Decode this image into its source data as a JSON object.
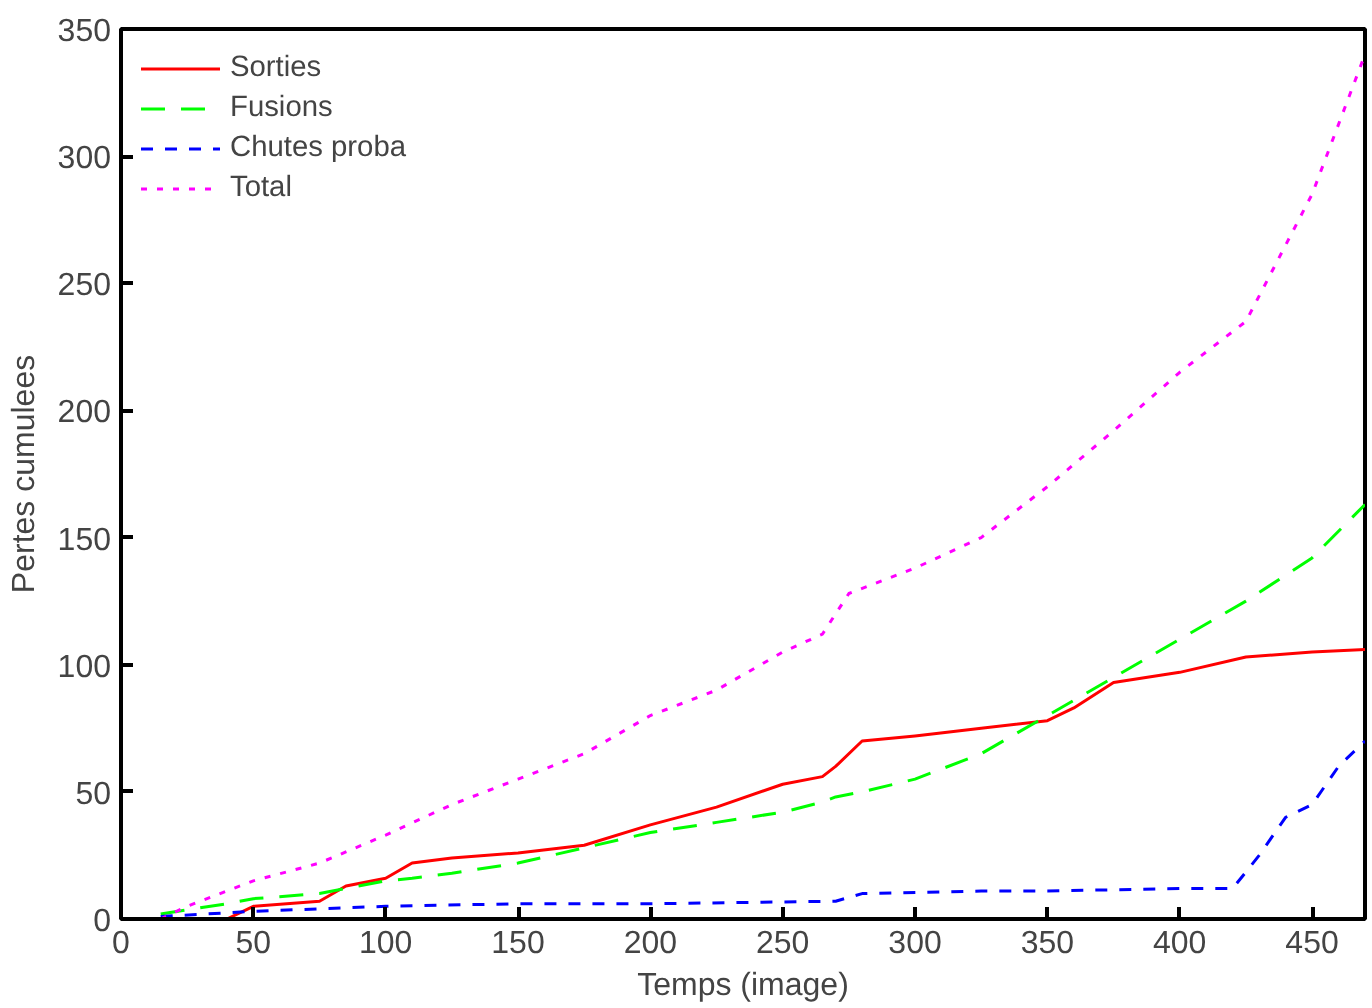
{
  "chart_data": {
    "type": "line",
    "xlabel": "Temps (image)",
    "ylabel": "Pertes cumulees",
    "x": [
      15,
      40,
      50,
      75,
      85,
      100,
      110,
      125,
      150,
      175,
      200,
      225,
      250,
      265,
      270,
      280,
      300,
      325,
      350,
      360,
      375,
      400,
      425,
      450,
      470
    ],
    "series": [
      {
        "name": "Sorties",
        "color": "#ff0000",
        "line_style": "solid",
        "values": [
          0,
          0,
          5,
          7,
          13,
          16,
          22,
          24,
          26,
          29,
          37,
          44,
          53,
          56,
          60,
          70,
          72,
          75,
          78,
          83,
          93,
          97,
          103,
          105,
          106
        ]
      },
      {
        "name": "Fusions",
        "color": "#00ff00",
        "line_style": "longdash",
        "values": [
          2,
          6,
          8,
          10,
          12,
          15,
          16,
          18,
          22,
          28,
          34,
          38,
          42,
          46,
          48,
          50,
          55,
          65,
          80,
          86,
          95,
          110,
          125,
          142,
          163
        ]
      },
      {
        "name": "Chutes proba",
        "color": "#0000ff",
        "line_style": "dashed",
        "x": [
          15,
          50,
          100,
          150,
          200,
          270,
          280,
          325,
          350,
          400,
          420,
          430,
          440,
          450,
          460,
          470
        ],
        "values": [
          1,
          3,
          5,
          6,
          6,
          7,
          10,
          11,
          11,
          12,
          12,
          25,
          40,
          45,
          60,
          70
        ]
      },
      {
        "name": "Total",
        "color": "#ff00ff",
        "line_style": "dotted",
        "x": [
          15,
          25,
          50,
          75,
          100,
          125,
          150,
          175,
          200,
          225,
          250,
          265,
          275,
          300,
          325,
          350,
          375,
          400,
          425,
          450,
          470
        ],
        "values": [
          0,
          5,
          15,
          22,
          33,
          45,
          55,
          65,
          80,
          90,
          105,
          112,
          128,
          138,
          150,
          170,
          192,
          215,
          235,
          285,
          340
        ]
      }
    ],
    "xlim": [
      0,
      470
    ],
    "ylim": [
      0,
      350
    ],
    "xticks": [
      0,
      50,
      100,
      150,
      200,
      250,
      300,
      350,
      400,
      450
    ],
    "yticks": [
      0,
      50,
      100,
      150,
      200,
      250,
      300,
      350
    ],
    "grid": false,
    "legend": "top left"
  }
}
